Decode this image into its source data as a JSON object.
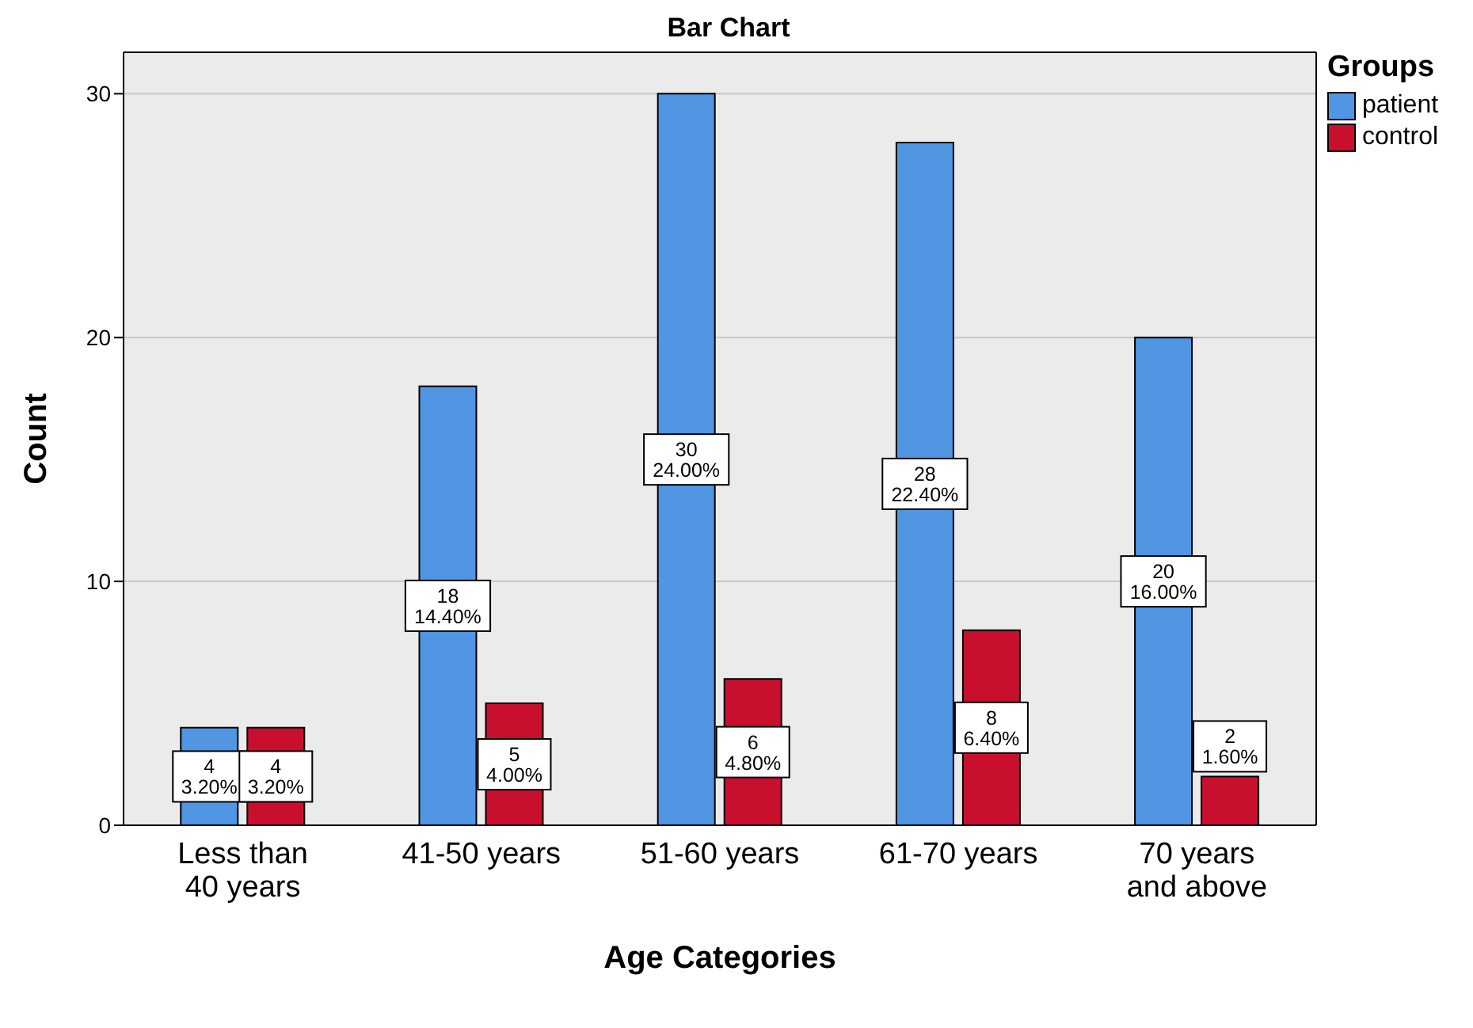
{
  "chart_data": {
    "type": "bar",
    "title": "Bar Chart",
    "xlabel": "Age Categories",
    "ylabel": "Count",
    "legend_title": "Groups",
    "categories": [
      "Less than 40 years",
      "41-50 years",
      "51-60 years",
      "61-70 years",
      "70 years and above"
    ],
    "series": [
      {
        "name": "patient",
        "color": "#5096e3",
        "values": [
          4,
          18,
          30,
          28,
          20
        ],
        "value_labels": [
          "4\n3.20%",
          "18\n14.40%",
          "30\n24.00%",
          "28\n22.40%",
          "20\n16.00%"
        ]
      },
      {
        "name": "control",
        "color": "#c8102e",
        "values": [
          4,
          5,
          6,
          8,
          2
        ],
        "value_labels": [
          "4\n3.20%",
          "5\n4.00%",
          "6\n4.80%",
          "8\n6.40%",
          "2\n1.60%"
        ]
      }
    ],
    "ylim": [
      0,
      31.7
    ],
    "yticks": [
      0,
      10,
      20,
      30
    ],
    "grid": "y",
    "legend": "top right"
  }
}
